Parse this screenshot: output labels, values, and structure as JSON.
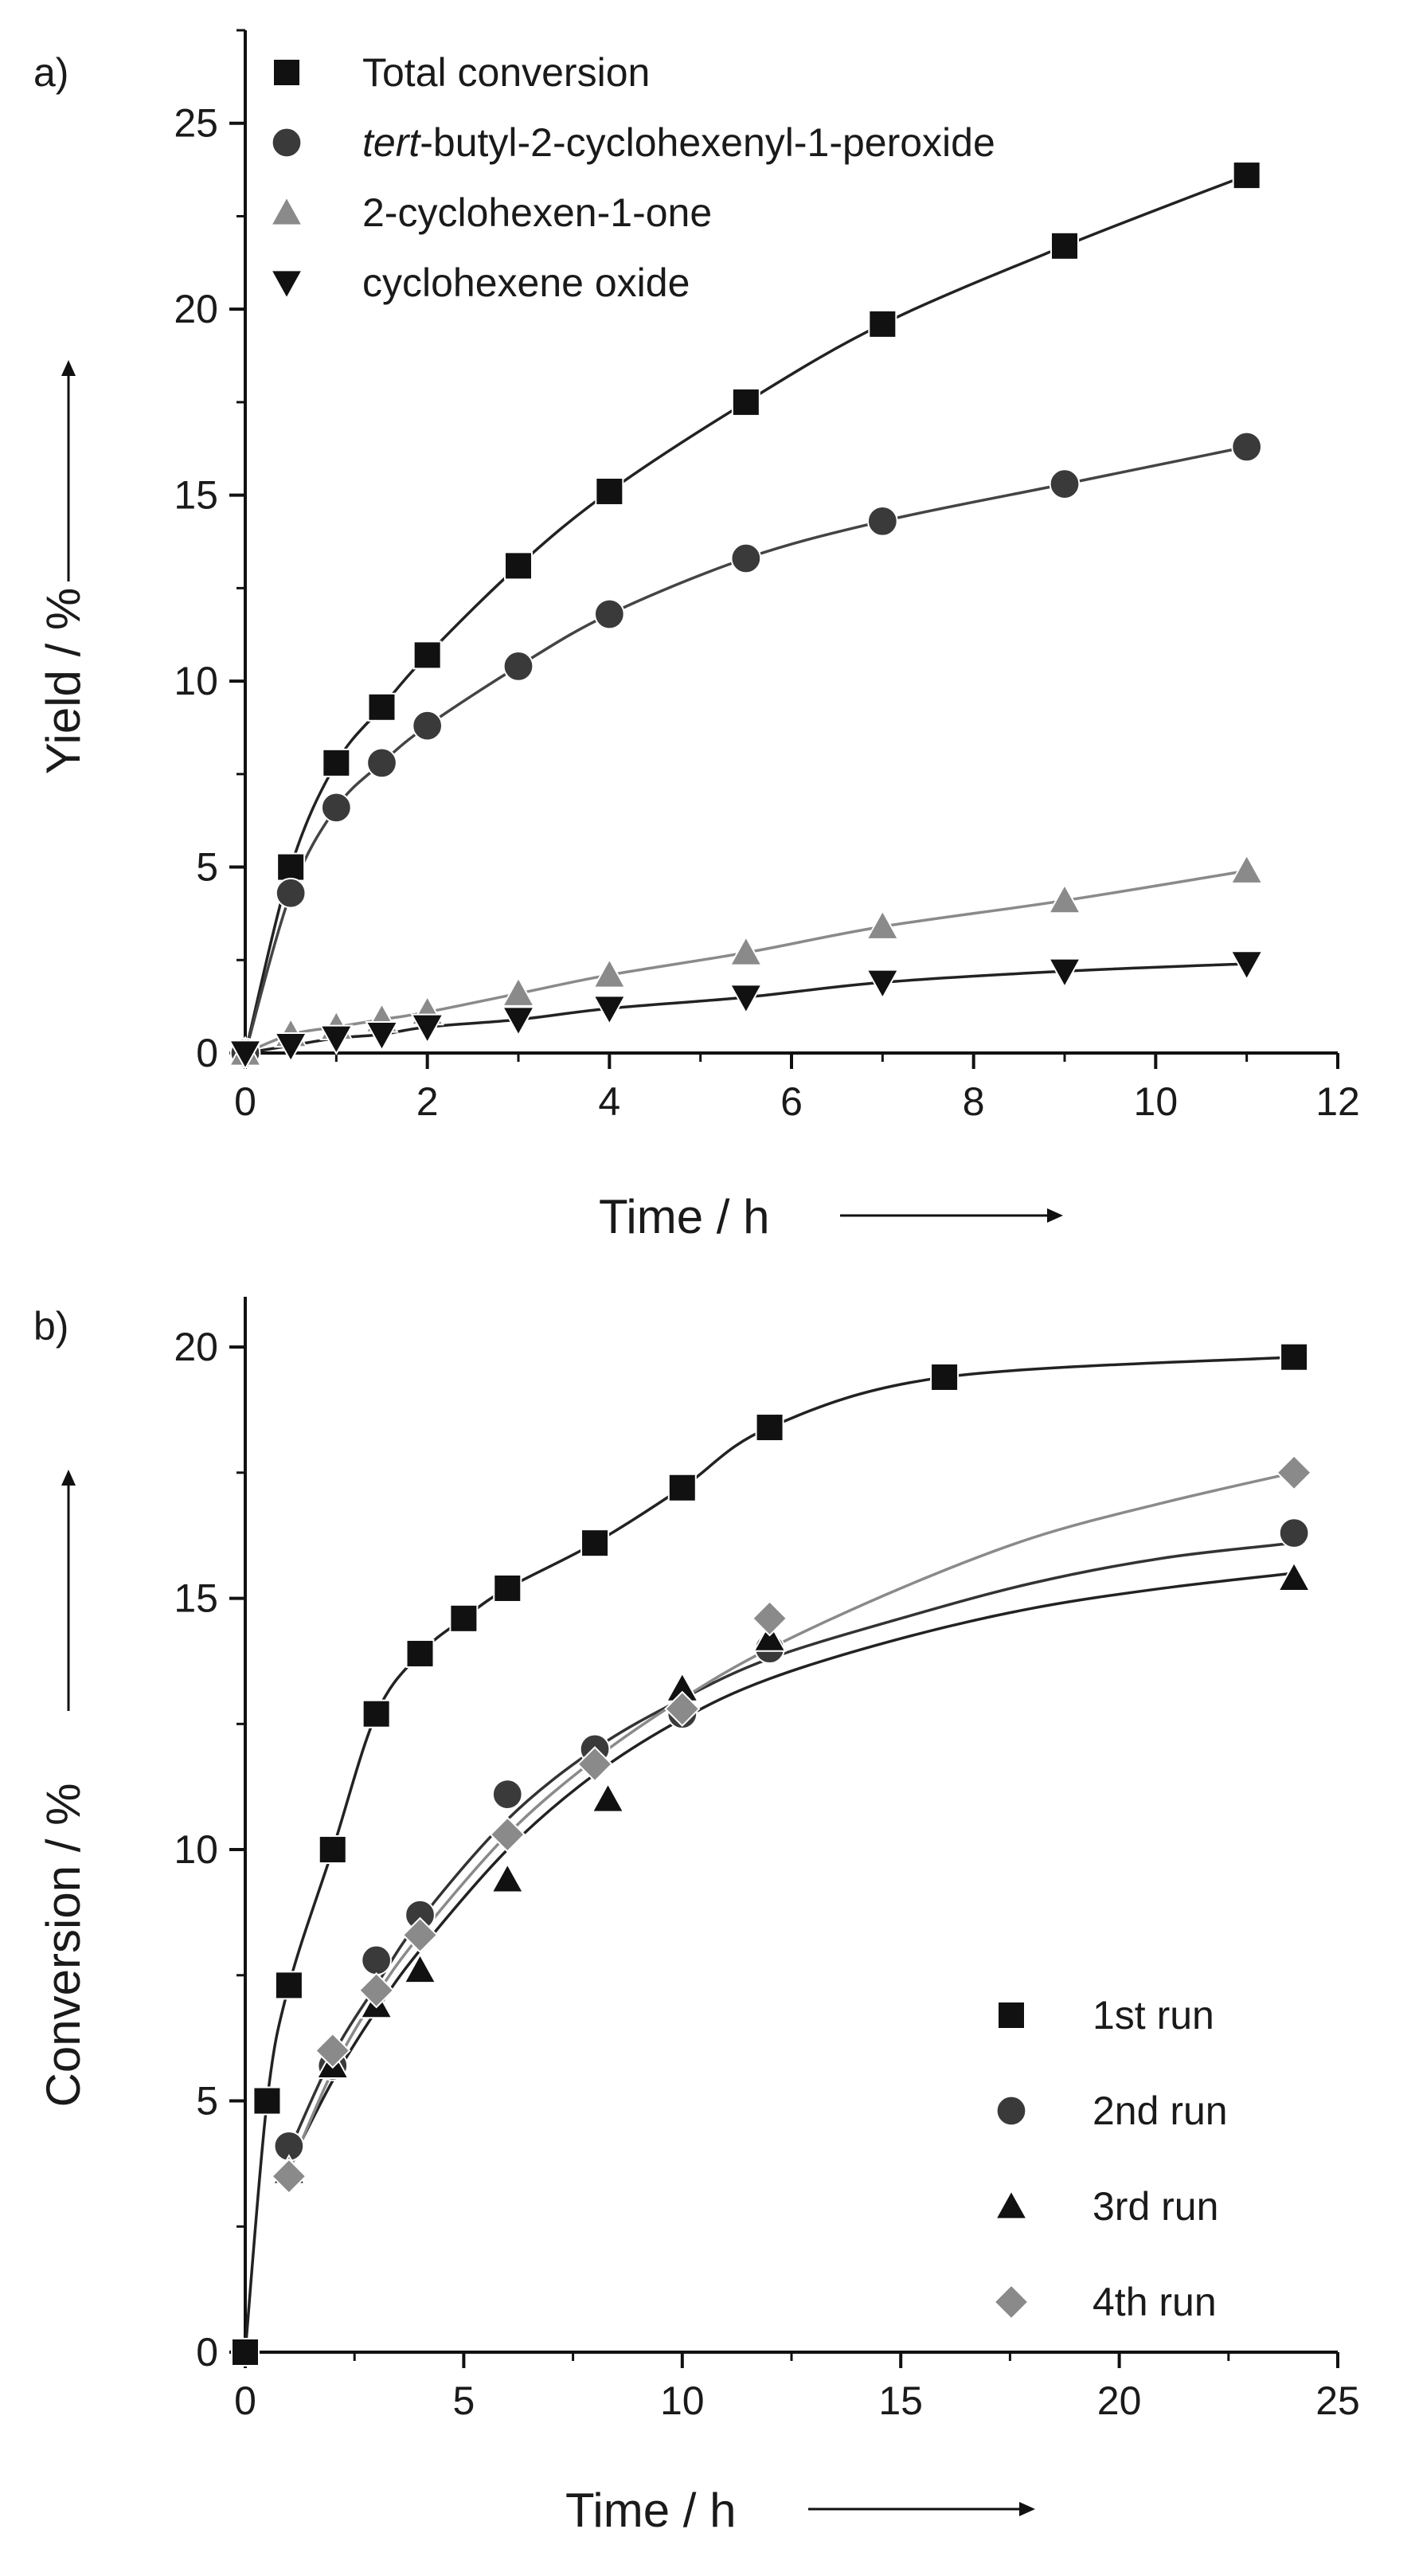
{
  "chart_data": [
    {
      "type": "line",
      "panel_label": "a)",
      "xlabel": "Time / h",
      "ylabel": "Yield / %",
      "xlim": [
        0,
        12
      ],
      "ylim": [
        0,
        27.5
      ],
      "x_ticks": [
        0,
        2,
        4,
        6,
        8,
        10,
        12
      ],
      "x_tick_labels": [
        "0",
        "2",
        "4",
        "6",
        "8",
        "10",
        "12"
      ],
      "y_ticks": [
        0,
        5,
        10,
        15,
        20,
        25
      ],
      "y_tick_labels": [
        "0",
        "5",
        "10",
        "15",
        "20",
        "25"
      ],
      "legend_position": "top-left",
      "series": [
        {
          "name": "Total conversion",
          "name_prefix_italic": "",
          "name_rest": "Total conversion",
          "marker": "square",
          "color": "#111111",
          "line_color": "#222222",
          "points": [
            [
              0,
              0
            ],
            [
              0.5,
              5.0
            ],
            [
              1,
              7.8
            ],
            [
              1.5,
              9.3
            ],
            [
              2,
              10.7
            ],
            [
              3,
              13.1
            ],
            [
              4,
              15.1
            ],
            [
              5.5,
              17.5
            ],
            [
              7,
              19.6
            ],
            [
              9,
              21.7
            ],
            [
              11,
              23.6
            ]
          ]
        },
        {
          "name": "tert-butyl-2-cyclohexenyl-1-peroxide",
          "name_prefix_italic": "tert",
          "name_rest": "-butyl-2-cyclohexenyl-1-peroxide",
          "marker": "circle",
          "color": "#3a3a3a",
          "line_color": "#444444",
          "points": [
            [
              0,
              0
            ],
            [
              0.5,
              4.3
            ],
            [
              1,
              6.6
            ],
            [
              1.5,
              7.8
            ],
            [
              2,
              8.8
            ],
            [
              3,
              10.4
            ],
            [
              4,
              11.8
            ],
            [
              5.5,
              13.3
            ],
            [
              7,
              14.3
            ],
            [
              9,
              15.3
            ],
            [
              11,
              16.3
            ]
          ]
        },
        {
          "name": "2-cyclohexen-1-one",
          "name_prefix_italic": "",
          "name_rest": "2-cyclohexen-1-one",
          "marker": "triangle-up",
          "color": "#8a8a8a",
          "line_color": "#8a8a8a",
          "points": [
            [
              0,
              0
            ],
            [
              0.5,
              0.5
            ],
            [
              1,
              0.7
            ],
            [
              1.5,
              0.9
            ],
            [
              2,
              1.1
            ],
            [
              3,
              1.6
            ],
            [
              4,
              2.1
            ],
            [
              5.5,
              2.7
            ],
            [
              7,
              3.4
            ],
            [
              9,
              4.1
            ],
            [
              11,
              4.9
            ]
          ]
        },
        {
          "name": "cyclohexene oxide",
          "name_prefix_italic": "",
          "name_rest": "cyclohexene oxide",
          "marker": "triangle-down",
          "color": "#111111",
          "line_color": "#222222",
          "points": [
            [
              0,
              0
            ],
            [
              0.5,
              0.2
            ],
            [
              1,
              0.4
            ],
            [
              1.5,
              0.5
            ],
            [
              2,
              0.7
            ],
            [
              3,
              0.9
            ],
            [
              4,
              1.2
            ],
            [
              5.5,
              1.5
            ],
            [
              7,
              1.9
            ],
            [
              9,
              2.2
            ],
            [
              11,
              2.4
            ]
          ]
        }
      ]
    },
    {
      "type": "line",
      "panel_label": "b)",
      "xlabel": "Time / h",
      "ylabel": "Conversion / %",
      "xlim": [
        0,
        25
      ],
      "ylim": [
        0,
        21
      ],
      "x_ticks": [
        0,
        5,
        10,
        15,
        20,
        25
      ],
      "x_tick_labels": [
        "0",
        "5",
        "10",
        "15",
        "20",
        "25"
      ],
      "y_ticks": [
        0,
        5,
        10,
        15,
        20
      ],
      "y_tick_labels": [
        "0",
        "5",
        "10",
        "15",
        "20"
      ],
      "legend_position": "bottom-right",
      "series": [
        {
          "name": "1st run",
          "name_prefix_italic": "",
          "name_rest": "1st run",
          "marker": "square",
          "color": "#111111",
          "line_color": "#222222",
          "smooth": false,
          "points": [
            [
              0,
              0
            ],
            [
              0.5,
              5.0
            ],
            [
              1,
              7.3
            ],
            [
              2,
              10.0
            ],
            [
              3,
              12.7
            ],
            [
              4,
              13.9
            ],
            [
              5,
              14.6
            ],
            [
              6,
              15.2
            ],
            [
              8,
              16.1
            ],
            [
              10,
              17.2
            ],
            [
              12,
              18.4
            ],
            [
              16,
              19.4
            ],
            [
              24,
              19.8
            ]
          ]
        },
        {
          "name": "2nd run",
          "name_prefix_italic": "",
          "name_rest": "2nd run",
          "marker": "circle",
          "color": "#3a3a3a",
          "line_color": "#333333",
          "smooth": true,
          "points": [
            [
              1,
              4.1
            ],
            [
              2,
              5.7
            ],
            [
              3,
              7.8
            ],
            [
              4,
              8.7
            ],
            [
              6,
              11.1
            ],
            [
              8,
              12.0
            ],
            [
              10,
              12.7
            ],
            [
              12,
              14.0
            ],
            [
              24,
              16.3
            ]
          ],
          "fit": [
            [
              1,
              4.0
            ],
            [
              2,
              5.9
            ],
            [
              3,
              7.3
            ],
            [
              4,
              8.6
            ],
            [
              6,
              10.6
            ],
            [
              8,
              12.0
            ],
            [
              10,
              13.0
            ],
            [
              12,
              13.8
            ],
            [
              15,
              14.6
            ],
            [
              18,
              15.3
            ],
            [
              21,
              15.8
            ],
            [
              24,
              16.1
            ]
          ]
        },
        {
          "name": "3rd run",
          "name_prefix_italic": "",
          "name_rest": "3rd run",
          "marker": "triangle-up",
          "color": "#111111",
          "line_color": "#222222",
          "smooth": true,
          "points": [
            [
              1,
              3.6
            ],
            [
              2,
              5.7
            ],
            [
              3,
              6.9
            ],
            [
              4,
              7.6
            ],
            [
              6,
              9.4
            ],
            [
              8.3,
              11.0
            ],
            [
              10,
              13.2
            ],
            [
              12,
              14.2
            ],
            [
              24,
              15.4
            ]
          ],
          "fit": [
            [
              1,
              3.7
            ],
            [
              2,
              5.4
            ],
            [
              3,
              6.8
            ],
            [
              4,
              8.0
            ],
            [
              6,
              10.0
            ],
            [
              8,
              11.5
            ],
            [
              10,
              12.6
            ],
            [
              12,
              13.4
            ],
            [
              15,
              14.2
            ],
            [
              18,
              14.8
            ],
            [
              21,
              15.2
            ],
            [
              24,
              15.5
            ]
          ]
        },
        {
          "name": "4th run",
          "name_prefix_italic": "",
          "name_rest": "4th run",
          "marker": "diamond",
          "color": "#8a8a8a",
          "line_color": "#8a8a8a",
          "smooth": true,
          "points": [
            [
              1,
              3.5
            ],
            [
              2,
              6.0
            ],
            [
              3,
              7.2
            ],
            [
              4,
              8.3
            ],
            [
              6,
              10.3
            ],
            [
              8,
              11.7
            ],
            [
              10,
              12.8
            ],
            [
              12,
              14.6
            ],
            [
              24,
              17.5
            ]
          ],
          "fit": [
            [
              1,
              3.6
            ],
            [
              2,
              5.6
            ],
            [
              3,
              7.1
            ],
            [
              4,
              8.3
            ],
            [
              6,
              10.3
            ],
            [
              8,
              11.8
            ],
            [
              10,
              13.0
            ],
            [
              12,
              14.0
            ],
            [
              15,
              15.2
            ],
            [
              18,
              16.2
            ],
            [
              21,
              16.9
            ],
            [
              24,
              17.5
            ]
          ]
        }
      ]
    }
  ]
}
